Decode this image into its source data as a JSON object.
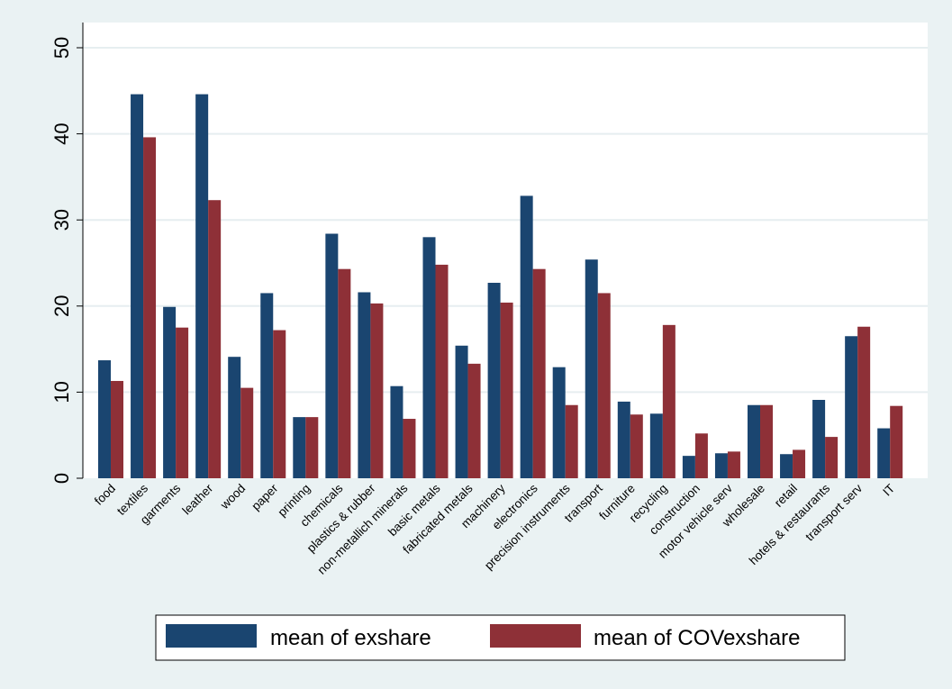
{
  "chart_data": {
    "type": "bar",
    "categories": [
      "food",
      "textiles",
      "garments",
      "leather",
      "wood",
      "paper",
      "printing",
      "chemicals",
      "plastics & rubber",
      "non-metallich minerals",
      "basic metals",
      "fabricated metals",
      "machinery",
      "electronics",
      "precision instruments",
      "transport",
      "furniture",
      "recycling",
      "construction",
      "motor vehicle serv",
      "wholesale",
      "retail",
      "hotels & restaurants",
      "transport serv",
      "IT"
    ],
    "series": [
      {
        "name": "mean of exshare",
        "color": "#1a4570",
        "values": [
          13.7,
          44.6,
          19.9,
          44.6,
          14.1,
          21.5,
          7.1,
          28.4,
          21.6,
          10.7,
          28.0,
          15.4,
          22.7,
          32.8,
          12.9,
          25.4,
          8.9,
          7.5,
          2.6,
          2.9,
          8.5,
          2.8,
          9.1,
          16.5,
          5.8
        ]
      },
      {
        "name": "mean of COVexshare",
        "color": "#8e3037",
        "values": [
          11.3,
          39.6,
          17.5,
          32.3,
          10.5,
          17.2,
          7.1,
          24.3,
          20.3,
          6.9,
          24.8,
          13.3,
          20.4,
          24.3,
          8.5,
          21.5,
          7.4,
          17.8,
          5.2,
          3.1,
          8.5,
          3.3,
          4.8,
          17.6,
          8.4
        ]
      }
    ],
    "yticks": [
      0,
      10,
      20,
      30,
      40,
      50
    ],
    "ylim": [
      0,
      52
    ],
    "grid": true,
    "legend": "bottom"
  }
}
